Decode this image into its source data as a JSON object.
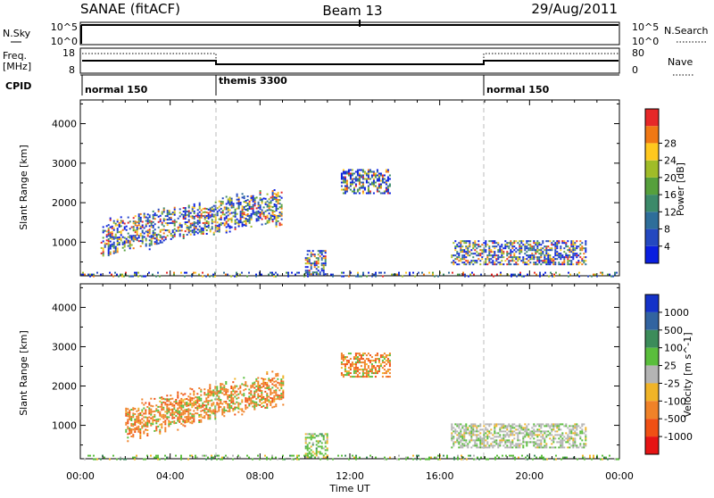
{
  "header": {
    "station": "SANAE (fitACF)",
    "beam": "Beam 13",
    "date": "29/Aug/2011"
  },
  "strip_nsky": {
    "label": "N.Sky",
    "tick_top": "10^5",
    "tick_bottom": "10^0",
    "right_tick_top": "10^5",
    "right_tick_bottom": "10^0",
    "right_label": "N.Search"
  },
  "strip_freq": {
    "label_top": "Freq.",
    "label_unit": "[MHz]",
    "tick_top": "18",
    "tick_bottom": "8",
    "right_tick_top": "80",
    "right_tick_bottom": "0",
    "right_label": "Nave"
  },
  "strip_cpid": {
    "label": "CPID",
    "modes": [
      {
        "name": "normal 150",
        "start_hour": 0
      },
      {
        "name": "themis 3300",
        "start_hour": 6
      },
      {
        "name": "normal 150",
        "start_hour": 18
      }
    ]
  },
  "time_axis": {
    "label": "Time UT",
    "ticks": [
      "00:00",
      "04:00",
      "08:00",
      "12:00",
      "16:00",
      "20:00",
      "00:00"
    ]
  },
  "chart_data": [
    {
      "type": "heatmap",
      "name": "power",
      "ylabel": "Slant Range [km]",
      "x_range_hours": [
        0,
        24
      ],
      "ylim": [
        150,
        4600
      ],
      "yticks": [
        1000,
        2000,
        3000,
        4000
      ],
      "colorbar": {
        "label": "Power [dB]",
        "ticks": [
          "4",
          "8",
          "12",
          "16",
          "20",
          "24",
          "28"
        ],
        "colors": [
          "#0a1ee0",
          "#2448c0",
          "#2e6e9a",
          "#3c8a6a",
          "#56a03c",
          "#a0bc28",
          "#ffc81e",
          "#f07814",
          "#e62828"
        ]
      },
      "regions": [
        {
          "hours": [
            0.9,
            9.0
          ],
          "range_km": [
            900,
            2050
          ],
          "dominant": "blue"
        },
        {
          "hours": [
            10.0,
            10.9
          ],
          "range_km": [
            200,
            800
          ],
          "dominant": "blue"
        },
        {
          "hours": [
            11.6,
            13.8
          ],
          "range_km": [
            2250,
            2850
          ],
          "dominant": "blue"
        },
        {
          "hours": [
            16.5,
            22.5
          ],
          "range_km": [
            450,
            1050
          ],
          "dominant": "blue"
        },
        {
          "hours": [
            0,
            24
          ],
          "range_km": [
            150,
            250
          ],
          "dominant": "blue"
        }
      ]
    },
    {
      "type": "heatmap",
      "name": "velocity",
      "ylabel": "Slant Range [km]",
      "x_range_hours": [
        0,
        24
      ],
      "ylim": [
        150,
        4600
      ],
      "yticks": [
        1000,
        2000,
        3000,
        4000
      ],
      "colorbar": {
        "label": "Velocity [m s^-1]",
        "ticks": [
          "1000",
          "500",
          "100",
          "25",
          "-25",
          "-100",
          "-500",
          "-1000"
        ],
        "colors": [
          "#1432c8",
          "#3264a0",
          "#3c8c5a",
          "#5abe3c",
          "#b4b4b4",
          "#f0b428",
          "#f08228",
          "#f05014",
          "#e61414"
        ]
      },
      "regions": [
        {
          "hours": [
            2.0,
            9.0
          ],
          "range_km": [
            900,
            2050
          ],
          "dominant": "orange"
        },
        {
          "hours": [
            10.0,
            11.0
          ],
          "range_km": [
            200,
            800
          ],
          "dominant": "green"
        },
        {
          "hours": [
            11.6,
            13.8
          ],
          "range_km": [
            2250,
            2850
          ],
          "dominant": "orange"
        },
        {
          "hours": [
            16.5,
            22.5
          ],
          "range_km": [
            450,
            1050
          ],
          "dominant": "grey"
        },
        {
          "hours": [
            0,
            24
          ],
          "range_km": [
            150,
            250
          ],
          "dominant": "green"
        }
      ]
    }
  ]
}
